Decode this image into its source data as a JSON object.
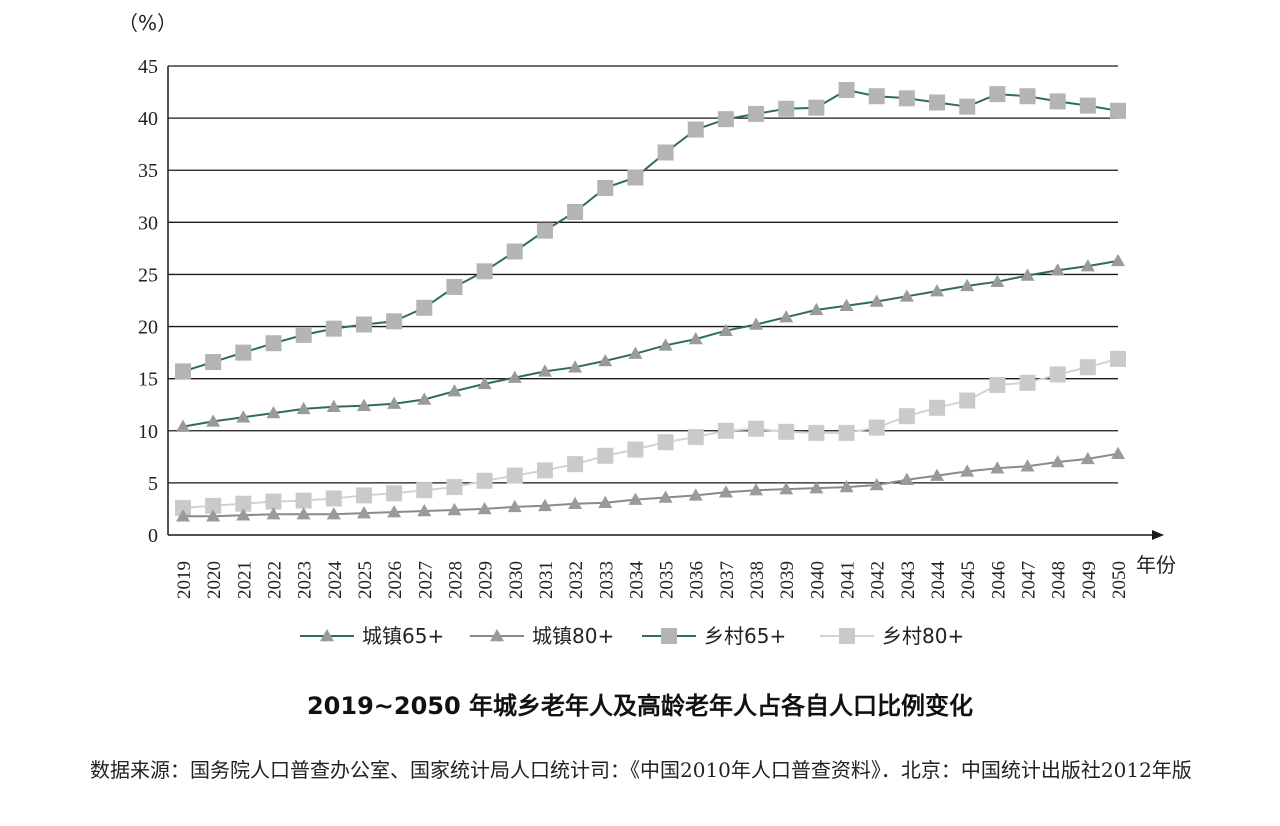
{
  "chart_data": {
    "type": "line",
    "title": "2019~2050 年城乡老年人及高龄老年人占各自人口比例变化",
    "ylabel": "（%）",
    "xlabel": "年份",
    "ylim": [
      0,
      45
    ],
    "yticks": [
      0,
      5,
      10,
      15,
      20,
      25,
      30,
      35,
      40,
      45
    ],
    "grid": "horizontal",
    "legend_position": "bottom",
    "x": [
      "2019",
      "2020",
      "2021",
      "2022",
      "2023",
      "2024",
      "2025",
      "2026",
      "2027",
      "2028",
      "2029",
      "2030",
      "2031",
      "2032",
      "2033",
      "2034",
      "2035",
      "2036",
      "2037",
      "2038",
      "2039",
      "2040",
      "2041",
      "2042",
      "2043",
      "2044",
      "2045",
      "2046",
      "2047",
      "2048",
      "2049",
      "2050"
    ],
    "series": [
      {
        "name": "城镇65+",
        "marker": "triangle",
        "line_color": "#2f6b66",
        "marker_color": "#9a9a9a",
        "values": [
          10.4,
          10.9,
          11.3,
          11.7,
          12.1,
          12.3,
          12.4,
          12.6,
          13.0,
          13.8,
          14.5,
          15.1,
          15.7,
          16.1,
          16.7,
          17.4,
          18.2,
          18.8,
          19.6,
          20.2,
          20.9,
          21.6,
          22.0,
          22.4,
          22.9,
          23.4,
          23.9,
          24.3,
          24.9,
          25.4,
          25.8,
          26.3
        ]
      },
      {
        "name": "城镇80+",
        "marker": "triangle",
        "line_color": "#8a8a8a",
        "marker_color": "#9a9a9a",
        "values": [
          1.8,
          1.8,
          1.9,
          2.0,
          2.0,
          2.0,
          2.1,
          2.2,
          2.3,
          2.4,
          2.5,
          2.7,
          2.8,
          3.0,
          3.1,
          3.4,
          3.6,
          3.8,
          4.1,
          4.3,
          4.4,
          4.5,
          4.6,
          4.8,
          5.3,
          5.7,
          6.1,
          6.4,
          6.6,
          7.0,
          7.3,
          7.8
        ]
      },
      {
        "name": "乡村65+",
        "marker": "square",
        "line_color": "#2f6b66",
        "marker_color": "#b4b4b4",
        "values": [
          15.7,
          16.6,
          17.5,
          18.4,
          19.2,
          19.8,
          20.2,
          20.5,
          21.8,
          23.8,
          25.3,
          27.2,
          29.2,
          31.0,
          33.3,
          34.3,
          36.7,
          38.9,
          39.9,
          40.4,
          40.9,
          41.0,
          42.7,
          42.1,
          41.9,
          41.5,
          41.1,
          42.3,
          42.1,
          41.6,
          41.2,
          40.7
        ]
      },
      {
        "name": "乡村80+",
        "marker": "square",
        "line_color": "#d2d2d2",
        "marker_color": "#cacaca",
        "values": [
          2.6,
          2.8,
          3.0,
          3.2,
          3.3,
          3.5,
          3.8,
          4.0,
          4.3,
          4.6,
          5.2,
          5.7,
          6.2,
          6.8,
          7.6,
          8.2,
          8.9,
          9.4,
          10.0,
          10.2,
          9.9,
          9.8,
          9.8,
          10.3,
          11.4,
          12.2,
          12.9,
          14.4,
          14.6,
          15.4,
          16.1,
          16.9
        ]
      }
    ]
  },
  "source_note": "数据来源：国务院人口普查办公室、国家统计局人口统计司：《中国2010年人口普查资料》．北京：中国统计出版社2012年版"
}
